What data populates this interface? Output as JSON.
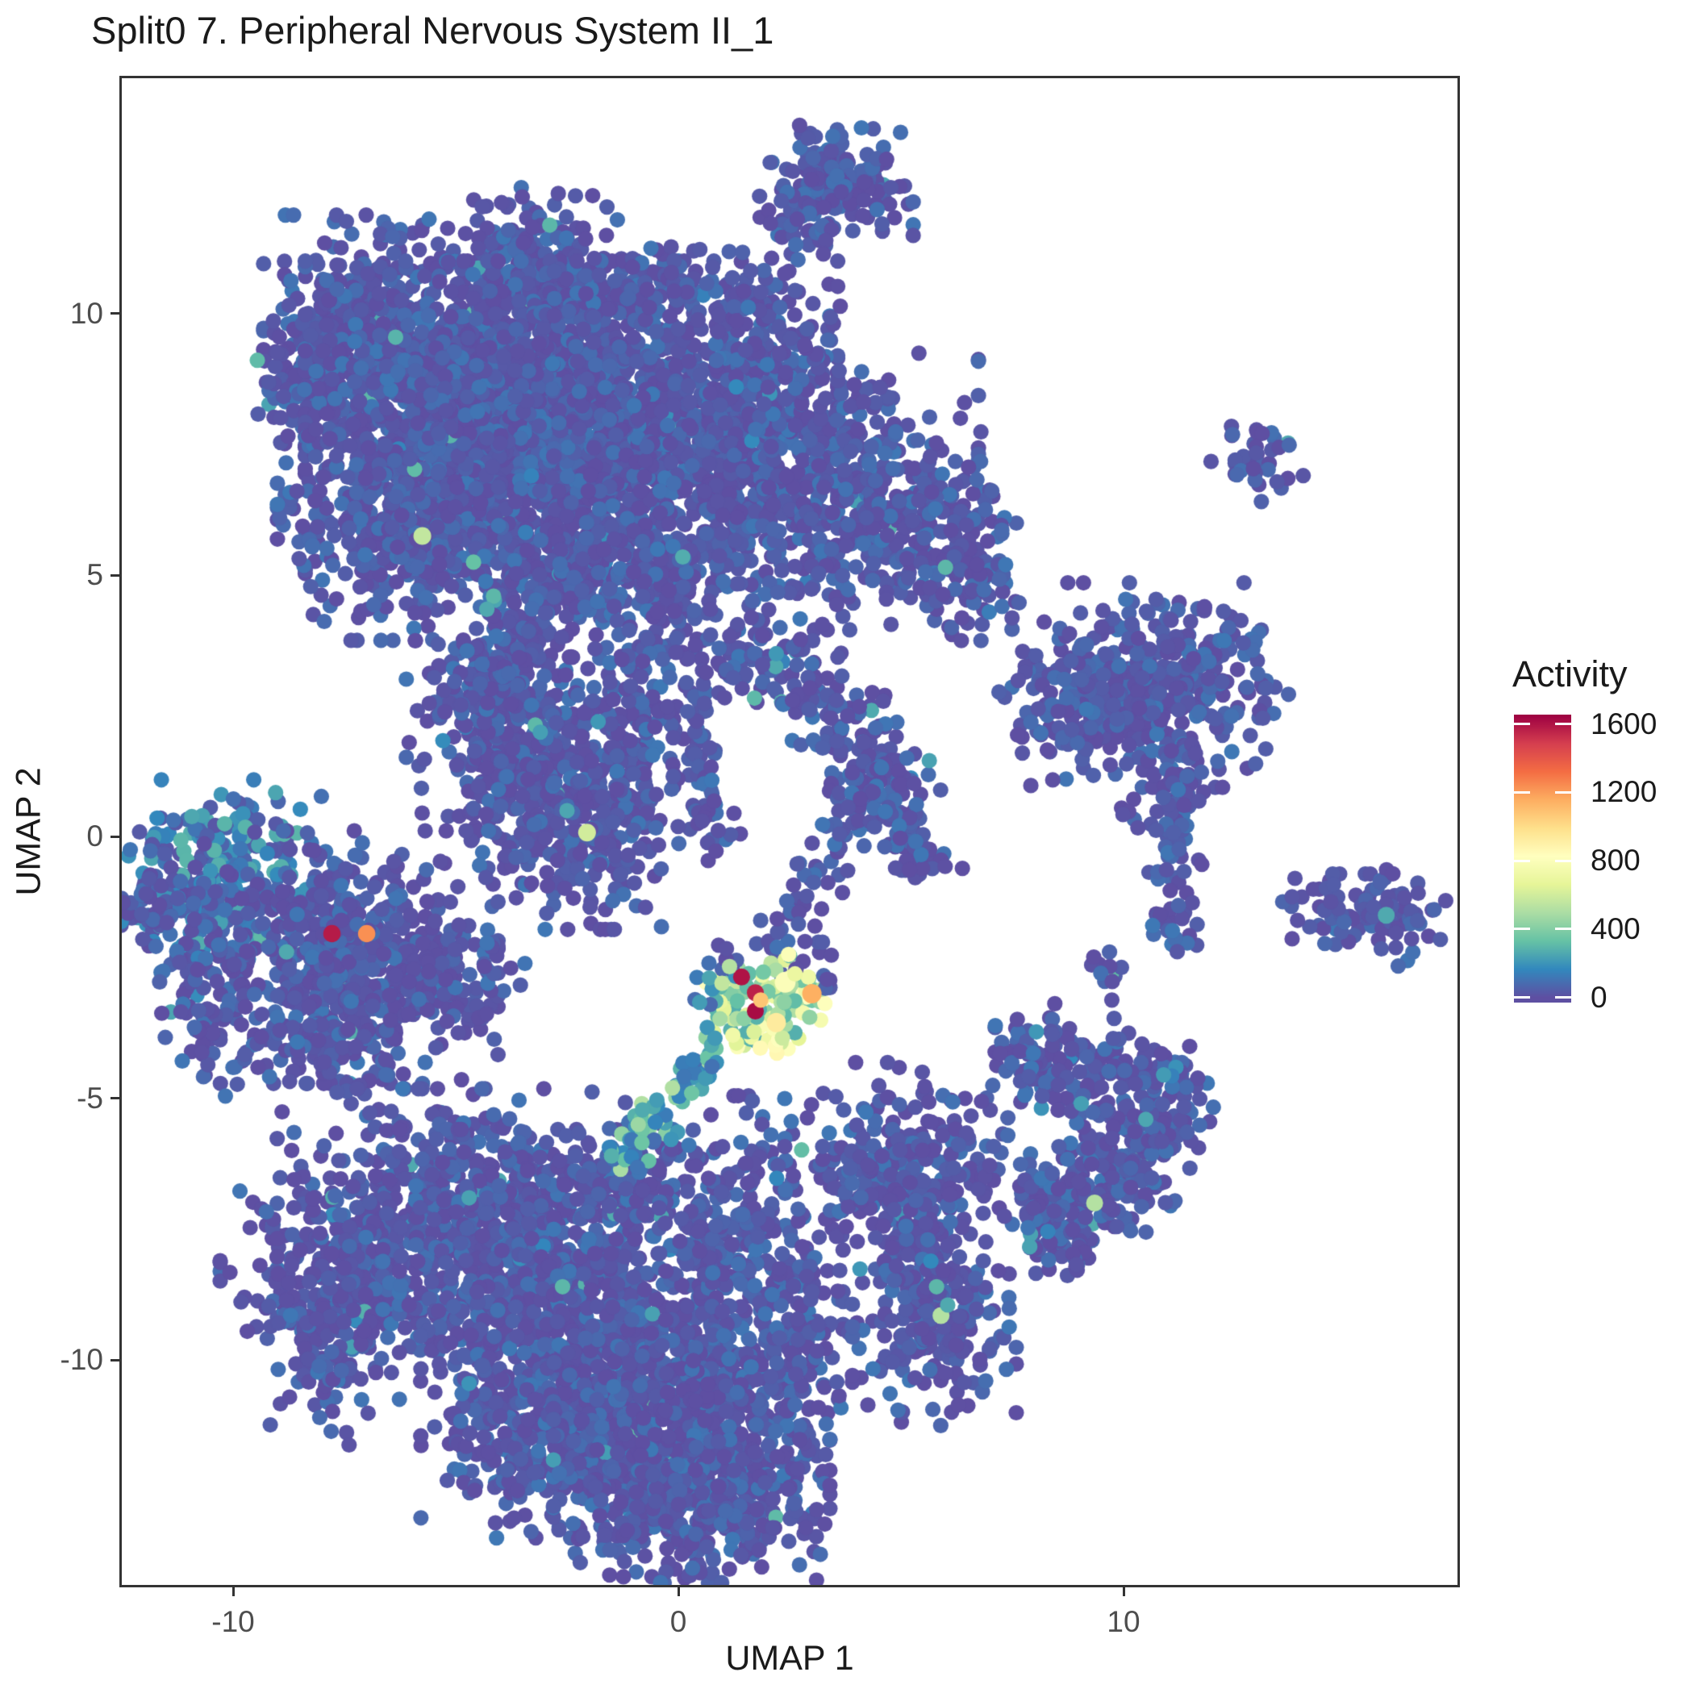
{
  "chart_data": {
    "type": "scatter",
    "title": "Split0 7. Peripheral Nervous System II_1",
    "xlabel": "UMAP 1",
    "ylabel": "UMAP 2",
    "xlim": [
      -12.5,
      17.5
    ],
    "ylim": [
      -14.3,
      14.5
    ],
    "x_ticks": [
      -10,
      0,
      10
    ],
    "y_ticks": [
      10,
      5,
      0,
      -5,
      -10
    ],
    "grid": false,
    "point_radius_px": 9.6,
    "base_point_color": "#5A53A4",
    "panel_border_color": "#333333",
    "tick_text_color": "#4d4d4d",
    "color_scale": {
      "title": "Activity",
      "ticks": [
        0,
        400,
        800,
        1200,
        1600
      ],
      "domain": [
        -30,
        1655
      ],
      "palette_name": "spectral-reversed",
      "stops": [
        [
          0,
          "#5E4FA2"
        ],
        [
          165,
          "#3288BD"
        ],
        [
          330,
          "#66C2A5"
        ],
        [
          495,
          "#ABDDA4"
        ],
        [
          660,
          "#E6F598"
        ],
        [
          825,
          "#FFFFBF"
        ],
        [
          990,
          "#FEE08B"
        ],
        [
          1155,
          "#FDAE61"
        ],
        [
          1320,
          "#F46D43"
        ],
        [
          1485,
          "#D53E4F"
        ],
        [
          1650,
          "#9E0142"
        ]
      ]
    },
    "clusters": [
      {
        "t": "b",
        "c": [
          3.55,
          12.45
        ],
        "r": [
          0.75,
          0.5
        ],
        "n": 150
      },
      {
        "t": "b",
        "c": [
          2.95,
          12.0
        ],
        "r": [
          0.4,
          0.4
        ],
        "n": 45
      },
      {
        "t": "t",
        "p": [
          3.3,
          11.8,
          3.3,
          11.35
        ],
        "w": 0.12,
        "n": 8
      },
      {
        "t": "b",
        "c": [
          -6.9,
          9.7
        ],
        "r": [
          1.05,
          0.95
        ],
        "n": 440
      },
      {
        "t": "b",
        "c": [
          -8.3,
          8.55
        ],
        "r": [
          0.55,
          0.5
        ],
        "n": 70
      },
      {
        "t": "b",
        "c": [
          -5.3,
          8.4
        ],
        "r": [
          0.55,
          0.45
        ],
        "n": 25
      },
      {
        "t": "b",
        "c": [
          -3.35,
          10.8
        ],
        "r": [
          0.9,
          0.7
        ],
        "n": 240
      },
      {
        "t": "b",
        "c": [
          -2.7,
          9.7
        ],
        "r": [
          0.5,
          0.4
        ],
        "n": 30
      },
      {
        "t": "b",
        "c": [
          -2.4,
          7.9
        ],
        "r": [
          2.6,
          1.35
        ],
        "n": 2200,
        "ap": 0.004
      },
      {
        "t": "b",
        "c": [
          -5.9,
          6.4
        ],
        "r": [
          1.35,
          1.15
        ],
        "n": 580,
        "ap": 0.006
      },
      {
        "t": "b",
        "c": [
          -5.2,
          9.0
        ],
        "r": [
          0.9,
          0.6
        ],
        "n": 160
      },
      {
        "t": "b",
        "c": [
          2.6,
          6.6
        ],
        "r": [
          1.8,
          1.15
        ],
        "n": 540,
        "ap": 0.006
      },
      {
        "t": "b",
        "c": [
          5.3,
          5.9
        ],
        "r": [
          1.1,
          0.8
        ],
        "n": 200
      },
      {
        "t": "b",
        "c": [
          6.6,
          4.9
        ],
        "r": [
          0.5,
          0.5
        ],
        "n": 50
      },
      {
        "t": "b",
        "c": [
          2.0,
          9.3
        ],
        "r": [
          0.8,
          0.8
        ],
        "n": 130
      },
      {
        "t": "b",
        "c": [
          -0.6,
          10.35
        ],
        "r": [
          0.95,
          0.55
        ],
        "n": 120
      },
      {
        "t": "b",
        "c": [
          -2.2,
          5.0
        ],
        "r": [
          1.0,
          0.7
        ],
        "n": 220
      },
      {
        "t": "b",
        "c": [
          -0.2,
          4.6
        ],
        "r": [
          0.6,
          0.6
        ],
        "n": 90
      },
      {
        "t": "t",
        "p": [
          0.35,
          3.9,
          0.35,
          0.9
        ],
        "w": 0.3,
        "n": 55
      },
      {
        "t": "b",
        "c": [
          0.6,
          0.35
        ],
        "r": [
          0.4,
          0.35
        ],
        "n": 30
      },
      {
        "t": "t",
        "p": [
          -0.5,
          3.9,
          -0.95,
          1.5
        ],
        "w": 0.3,
        "n": 45
      },
      {
        "t": "b",
        "c": [
          -3.5,
          4.1
        ],
        "r": [
          0.55,
          0.55
        ],
        "n": 45
      },
      {
        "t": "b",
        "c": [
          -3.4,
          1.7
        ],
        "r": [
          1.15,
          1.0
        ],
        "n": 340,
        "ap": 0.012
      },
      {
        "t": "b",
        "c": [
          -2.3,
          0.3
        ],
        "r": [
          0.95,
          0.9
        ],
        "n": 280,
        "ap": 0.012
      },
      {
        "t": "b",
        "c": [
          -4.5,
          2.9
        ],
        "r": [
          0.7,
          0.6
        ],
        "n": 130
      },
      {
        "t": "b",
        "c": [
          -1.1,
          2.4
        ],
        "r": [
          0.75,
          0.75
        ],
        "n": 60
      },
      {
        "t": "t",
        "p": [
          1.3,
          4.1,
          4.6,
          1.4
        ],
        "w": 0.45,
        "n": 170,
        "ap": 0.02
      },
      {
        "t": "t",
        "p": [
          4.6,
          1.4,
          5.45,
          -0.8
        ],
        "w": 0.35,
        "n": 70,
        "ap": 0.02
      },
      {
        "t": "t",
        "p": [
          4.6,
          1.4,
          3.0,
          -0.9
        ],
        "w": 0.3,
        "n": 60,
        "ap": 0.02
      },
      {
        "t": "b",
        "c": [
          5.0,
          0.3
        ],
        "r": [
          0.6,
          0.6
        ],
        "n": 40
      },
      {
        "t": "t",
        "p": [
          2.9,
          -1.0,
          1.85,
          -2.3
        ],
        "w": 0.25,
        "n": 25
      },
      {
        "t": "b",
        "c": [
          10.6,
          2.9
        ],
        "r": [
          1.35,
          0.85
        ],
        "n": 430,
        "ap": 0.004
      },
      {
        "t": "b",
        "c": [
          9.0,
          2.2
        ],
        "r": [
          0.8,
          0.55
        ],
        "n": 95
      },
      {
        "t": "t",
        "p": [
          11.35,
          1.8,
          11.1,
          -0.9
        ],
        "w": 0.27,
        "n": 75
      },
      {
        "t": "b",
        "c": [
          11.2,
          -1.65
        ],
        "r": [
          0.3,
          0.3
        ],
        "n": 25
      },
      {
        "t": "b",
        "c": [
          10.2,
          0.5
        ],
        "r": [
          0.3,
          0.25
        ],
        "n": 7
      },
      {
        "t": "b",
        "c": [
          9.5,
          -2.5
        ],
        "r": [
          0.28,
          0.22
        ],
        "n": 12
      },
      {
        "t": "b",
        "c": [
          13.0,
          7.25
        ],
        "r": [
          0.45,
          0.38
        ],
        "n": 38
      },
      {
        "t": "b",
        "c": [
          15.1,
          -1.4
        ],
        "r": [
          0.85,
          0.3
        ],
        "n": 65
      },
      {
        "t": "b",
        "c": [
          16.2,
          -1.55
        ],
        "r": [
          0.45,
          0.4
        ],
        "n": 40
      },
      {
        "t": "b",
        "c": [
          -10.1,
          -0.75
        ],
        "r": [
          1.05,
          0.8
        ],
        "n": 280,
        "vr": [
          20,
          300
        ],
        "sk": 1.6,
        "ap": 0.03,
        "ar": [
          150,
          330
        ]
      },
      {
        "t": "b",
        "c": [
          -7.5,
          -2.3
        ],
        "r": [
          1.5,
          1.05
        ],
        "n": 560,
        "ap": 0.01
      },
      {
        "t": "b",
        "c": [
          -5.4,
          -2.95
        ],
        "r": [
          0.85,
          0.4
        ],
        "n": 90
      },
      {
        "t": "b",
        "c": [
          -10.5,
          -3.0
        ],
        "r": [
          0.5,
          0.85
        ],
        "n": 75
      },
      {
        "t": "b",
        "c": [
          -7.9,
          -3.95
        ],
        "r": [
          0.8,
          0.5
        ],
        "n": 90
      },
      {
        "t": "b",
        "c": [
          -11.4,
          -1.3
        ],
        "r": [
          0.55,
          0.5
        ],
        "n": 60
      },
      {
        "t": "b",
        "c": [
          -5.1,
          -7.0
        ],
        "r": [
          1.7,
          0.95
        ],
        "n": 480,
        "ap": 0.012,
        "ar": [
          130,
          360
        ]
      },
      {
        "t": "b",
        "c": [
          -7.3,
          -8.4
        ],
        "r": [
          1.3,
          0.8
        ],
        "n": 300,
        "ap": 0.01
      },
      {
        "t": "b",
        "c": [
          -7.9,
          -9.9
        ],
        "r": [
          0.55,
          0.75
        ],
        "n": 85
      },
      {
        "t": "b",
        "c": [
          -2.7,
          -8.7
        ],
        "r": [
          1.55,
          1.35
        ],
        "n": 700,
        "ap": 0.012
      },
      {
        "t": "b",
        "c": [
          -1.6,
          -11.1
        ],
        "r": [
          1.15,
          1.0
        ],
        "n": 320,
        "ap": 0.01
      },
      {
        "t": "b",
        "c": [
          -3.6,
          -11.5
        ],
        "r": [
          0.95,
          0.85
        ],
        "n": 170
      },
      {
        "t": "b",
        "c": [
          0.3,
          -12.3
        ],
        "r": [
          1.35,
          0.85
        ],
        "n": 730,
        "ap": 0.008
      },
      {
        "t": "b",
        "c": [
          1.4,
          -8.4
        ],
        "r": [
          1.0,
          1.5
        ],
        "n": 370,
        "ap": 0.012
      },
      {
        "t": "b",
        "c": [
          2.5,
          -9.9
        ],
        "r": [
          0.75,
          0.95
        ],
        "n": 130
      },
      {
        "t": "b",
        "c": [
          0.0,
          -10.7
        ],
        "r": [
          0.95,
          0.75
        ],
        "n": 150
      },
      {
        "t": "b",
        "c": [
          -1.2,
          -6.7
        ],
        "r": [
          0.95,
          0.55
        ],
        "n": 140,
        "ap": 0.02,
        "ar": [
          140,
          380
        ]
      },
      {
        "t": "t",
        "p": [
          0.85,
          -4.05,
          -1.5,
          -6.3
        ],
        "w": 0.24,
        "n": 70,
        "vr": [
          80,
          520
        ],
        "sk": 1.3
      },
      {
        "t": "b",
        "c": [
          5.15,
          -6.5
        ],
        "r": [
          1.2,
          0.95
        ],
        "n": 310,
        "ap": 0.015
      },
      {
        "t": "b",
        "c": [
          5.75,
          -9.3
        ],
        "r": [
          0.8,
          0.85
        ],
        "n": 200,
        "ap": 0.015
      },
      {
        "t": "b",
        "c": [
          5.5,
          -8.1
        ],
        "r": [
          0.5,
          0.5
        ],
        "n": 60
      },
      {
        "t": "t",
        "p": [
          7.8,
          -7.4,
          9.3,
          -7.1
        ],
        "w": 0.5,
        "n": 130,
        "ap": 0.02
      },
      {
        "t": "t",
        "p": [
          9.3,
          -7.1,
          10.5,
          -6.0
        ],
        "w": 0.5,
        "n": 110,
        "ap": 0.02
      },
      {
        "t": "t",
        "p": [
          10.5,
          -6.0,
          11.35,
          -4.3
        ],
        "w": 0.45,
        "n": 95,
        "ap": 0.02
      },
      {
        "t": "b",
        "c": [
          9.3,
          -4.5
        ],
        "r": [
          0.95,
          0.6
        ],
        "n": 90,
        "ap": 0.02
      },
      {
        "t": "b",
        "c": [
          8.3,
          -4.2
        ],
        "r": [
          0.5,
          0.45
        ],
        "n": 45
      },
      {
        "t": "b",
        "c": [
          7.6,
          -4.1
        ],
        "r": [
          0.3,
          0.3
        ],
        "n": 12
      },
      {
        "t": "b",
        "c": [
          9.7,
          -5.6
        ],
        "r": [
          0.75,
          0.65
        ],
        "n": 45
      },
      {
        "t": "t",
        "p": [
          0.98,
          -2.55,
          1.6,
          -3.95
        ],
        "w": 0.3,
        "n": 50,
        "vr": [
          250,
          880
        ],
        "sk": 1.0
      },
      {
        "t": "t",
        "p": [
          1.7,
          -3.9,
          3.05,
          -2.8
        ],
        "w": 0.33,
        "n": 55,
        "vr": [
          250,
          880
        ],
        "sk": 1.0
      },
      {
        "t": "b",
        "c": [
          2.2,
          -3.0
        ],
        "r": [
          0.55,
          0.45
        ],
        "n": 30,
        "vr": [
          300,
          800
        ],
        "sk": 1.0
      },
      {
        "t": "b",
        "c": [
          1.0,
          -2.25
        ],
        "r": [
          0.25,
          0.2
        ],
        "n": 6,
        "vr": [
          0,
          80
        ]
      },
      {
        "t": "b",
        "c": [
          3.0,
          -2.3
        ],
        "r": [
          0.3,
          0.2
        ],
        "n": 7,
        "vr": [
          0,
          80
        ]
      },
      {
        "t": "b",
        "c": [
          3.35,
          -2.7
        ],
        "r": [
          0.2,
          0.25
        ],
        "n": 5,
        "vr": [
          0,
          80
        ]
      },
      {
        "t": "b",
        "c": [
          0.6,
          -3.3
        ],
        "r": [
          0.3,
          0.5
        ],
        "n": 12,
        "vr": [
          60,
          300
        ],
        "sk": 1.2
      }
    ],
    "highlights": [
      [
        -6.35,
        9.55,
        290
      ],
      [
        -5.75,
        5.75,
        560,
        1.15
      ],
      [
        -4.6,
        5.25,
        330
      ],
      [
        -4.15,
        4.6,
        300
      ],
      [
        -4.3,
        4.35,
        260
      ],
      [
        6.0,
        5.15,
        300
      ],
      [
        0.1,
        5.35,
        270
      ],
      [
        1.3,
        8.6,
        170
      ],
      [
        2.2,
        3.5,
        210
      ],
      [
        -3.3,
        6.9,
        150
      ],
      [
        -1.8,
        2.2,
        210
      ],
      [
        -3.1,
        2.0,
        230
      ],
      [
        -2.5,
        0.5,
        250
      ],
      [
        -2.05,
        0.08,
        600,
        1.15
      ],
      [
        15.9,
        -1.5,
        260,
        1.1
      ],
      [
        -8.8,
        -2.2,
        260
      ],
      [
        -7.78,
        -1.85,
        1580,
        1.12
      ],
      [
        -7.0,
        -1.85,
        1230,
        1.12
      ],
      [
        1.42,
        -2.68,
        1600,
        1.1
      ],
      [
        1.73,
        -2.98,
        1560,
        1.1
      ],
      [
        1.73,
        -3.33,
        1620,
        1.1
      ],
      [
        3.0,
        -3.0,
        1150,
        1.25
      ],
      [
        1.85,
        -3.12,
        1080
      ],
      [
        2.4,
        -2.78,
        800,
        1.35
      ],
      [
        2.2,
        -3.55,
        930,
        1.25
      ],
      [
        2.62,
        -2.62,
        700
      ],
      [
        1.15,
        -2.48,
        520
      ],
      [
        0.98,
        -2.8,
        560
      ],
      [
        2.95,
        -3.45,
        430
      ],
      [
        0.3,
        -4.9,
        350
      ],
      [
        -1.5,
        -6.1,
        280
      ],
      [
        -2.6,
        -8.6,
        300
      ],
      [
        -4.7,
        -10.45,
        200
      ],
      [
        -4.7,
        -6.9,
        240
      ],
      [
        5.8,
        -8.6,
        300
      ],
      [
        5.9,
        -9.15,
        520,
        1.1
      ],
      [
        6.05,
        -8.95,
        260
      ],
      [
        9.35,
        -7.0,
        520,
        1.1
      ],
      [
        10.5,
        -5.4,
        250
      ],
      [
        10.9,
        -4.55,
        220
      ],
      [
        9.05,
        -5.1,
        230
      ]
    ]
  }
}
